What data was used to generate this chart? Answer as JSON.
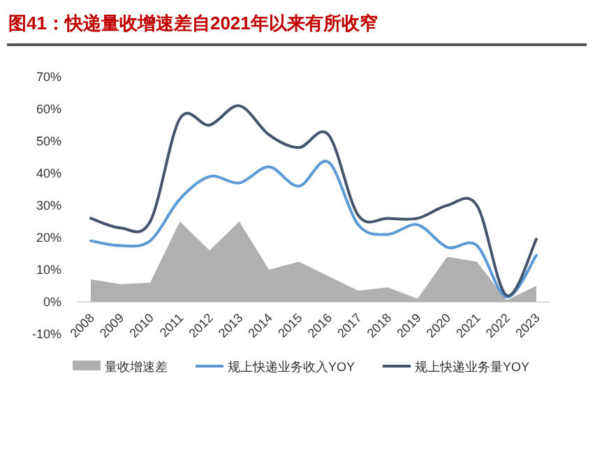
{
  "chart_data": {
    "type": "line",
    "title": "图41：快递量收增速差自2021年以来有所收窄",
    "categories": [
      "2008",
      "2009",
      "2010",
      "2011",
      "2012",
      "2013",
      "2014",
      "2015",
      "2016",
      "2017",
      "2018",
      "2019",
      "2020",
      "2021",
      "2022",
      "2023"
    ],
    "series": [
      {
        "name": "量收增速差",
        "type": "area",
        "color": "#b0b0b0",
        "values": [
          7,
          5.5,
          6,
          25,
          16,
          25,
          10,
          12.5,
          8,
          3.5,
          4.5,
          1,
          14,
          12.5,
          0.5,
          5
        ]
      },
      {
        "name": "规上快递业务收入YOY",
        "color": "#5b9bd5",
        "values": [
          19,
          17.5,
          19,
          32,
          39,
          37,
          42,
          36,
          43.5,
          24,
          21,
          24,
          17,
          17.5,
          1.5,
          14.5
        ]
      },
      {
        "name": "规上快递业务量YOY",
        "color": "#44546a",
        "values": [
          26,
          23,
          25,
          57,
          55,
          61,
          52,
          48,
          52,
          27,
          26,
          26,
          30,
          30,
          2,
          19.5
        ]
      }
    ],
    "ylim": [
      -10,
      70
    ],
    "yticks": [
      {
        "value": -10,
        "label": "-10%"
      },
      {
        "value": 0,
        "label": "0%"
      },
      {
        "value": 10,
        "label": "10%"
      },
      {
        "value": 20,
        "label": "20%"
      },
      {
        "value": 30,
        "label": "30%"
      },
      {
        "value": 40,
        "label": "40%"
      },
      {
        "value": 50,
        "label": "50%"
      },
      {
        "value": 60,
        "label": "60%"
      },
      {
        "value": 70,
        "label": "70%"
      }
    ],
    "grid": false,
    "legend": "bottom"
  }
}
